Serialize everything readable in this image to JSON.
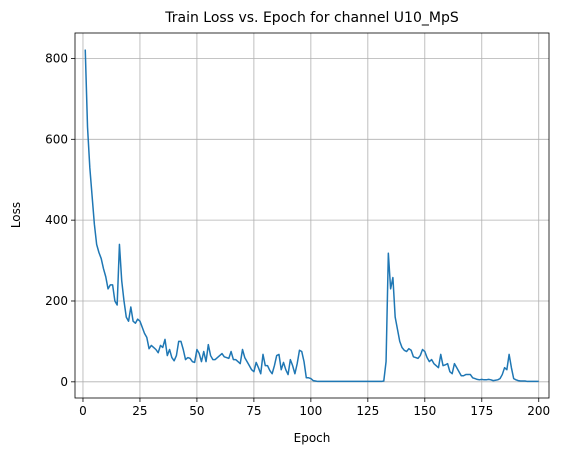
{
  "chart_data": {
    "type": "line",
    "title": "Train Loss vs. Epoch for channel U10_MpS",
    "xlabel": "Epoch",
    "ylabel": "Loss",
    "x": [
      1,
      2,
      3,
      4,
      5,
      6,
      7,
      8,
      9,
      10,
      11,
      12,
      13,
      14,
      15,
      16,
      17,
      18,
      19,
      20,
      21,
      22,
      23,
      24,
      25,
      26,
      27,
      28,
      29,
      30,
      31,
      32,
      33,
      34,
      35,
      36,
      37,
      38,
      39,
      40,
      41,
      42,
      43,
      44,
      45,
      46,
      47,
      48,
      49,
      50,
      51,
      52,
      53,
      54,
      55,
      56,
      57,
      58,
      59,
      60,
      61,
      62,
      63,
      64,
      65,
      66,
      67,
      68,
      69,
      70,
      71,
      72,
      73,
      74,
      75,
      76,
      77,
      78,
      79,
      80,
      81,
      82,
      83,
      84,
      85,
      86,
      87,
      88,
      89,
      90,
      91,
      92,
      93,
      94,
      95,
      96,
      97,
      98,
      99,
      100,
      101,
      102,
      103,
      104,
      105,
      106,
      107,
      108,
      109,
      110,
      111,
      112,
      113,
      114,
      115,
      116,
      117,
      118,
      119,
      120,
      121,
      122,
      123,
      124,
      125,
      126,
      127,
      128,
      129,
      130,
      131,
      132,
      133,
      134,
      135,
      136,
      137,
      138,
      139,
      140,
      141,
      142,
      143,
      144,
      145,
      146,
      147,
      148,
      149,
      150,
      151,
      152,
      153,
      154,
      155,
      156,
      157,
      158,
      159,
      160,
      161,
      162,
      163,
      164,
      165,
      166,
      167,
      168,
      169,
      170,
      171,
      172,
      173,
      174,
      175,
      176,
      177,
      178,
      179,
      180,
      181,
      182,
      183,
      184,
      185,
      186,
      187,
      188,
      189,
      190,
      191,
      192,
      193,
      194,
      195,
      196,
      197,
      198,
      199,
      200
    ],
    "series": [
      {
        "color": "#1f77b4",
        "values": [
          822,
          630,
          530,
          460,
          390,
          340,
          320,
          305,
          280,
          260,
          230,
          240,
          240,
          200,
          190,
          340,
          250,
          200,
          160,
          150,
          185,
          150,
          145,
          155,
          150,
          135,
          120,
          110,
          82,
          90,
          85,
          80,
          72,
          90,
          85,
          105,
          65,
          80,
          60,
          52,
          65,
          100,
          100,
          80,
          55,
          60,
          58,
          50,
          48,
          80,
          70,
          50,
          75,
          50,
          92,
          65,
          55,
          55,
          60,
          65,
          70,
          62,
          60,
          58,
          75,
          55,
          55,
          50,
          45,
          80,
          60,
          50,
          40,
          30,
          25,
          48,
          35,
          20,
          68,
          40,
          40,
          28,
          20,
          40,
          65,
          68,
          30,
          48,
          30,
          18,
          55,
          40,
          20,
          45,
          78,
          75,
          50,
          10,
          10,
          8,
          3,
          2,
          1,
          1,
          1,
          1,
          1,
          1,
          1,
          1,
          1,
          1,
          1,
          1,
          1,
          1,
          1,
          1,
          1,
          1,
          1,
          1,
          1,
          1,
          1,
          1,
          1,
          1,
          1,
          1,
          1,
          2,
          50,
          318,
          230,
          258,
          160,
          130,
          100,
          85,
          78,
          75,
          82,
          78,
          62,
          60,
          58,
          65,
          80,
          75,
          60,
          50,
          55,
          45,
          40,
          35,
          68,
          40,
          42,
          45,
          25,
          20,
          45,
          35,
          25,
          15,
          15,
          18,
          18,
          18,
          10,
          8,
          6,
          5,
          6,
          5,
          5,
          6,
          5,
          3,
          4,
          5,
          8,
          18,
          35,
          30,
          68,
          35,
          8,
          5,
          3,
          2,
          2,
          2,
          1,
          1,
          1,
          1,
          1,
          1
        ]
      }
    ],
    "xlim": [
      -3.5,
      204.5
    ],
    "ylim": [
      -40,
      863
    ],
    "xticks": [
      0,
      25,
      50,
      75,
      100,
      125,
      150,
      175,
      200
    ],
    "yticks": [
      0,
      200,
      400,
      600,
      800
    ],
    "grid": true
  }
}
